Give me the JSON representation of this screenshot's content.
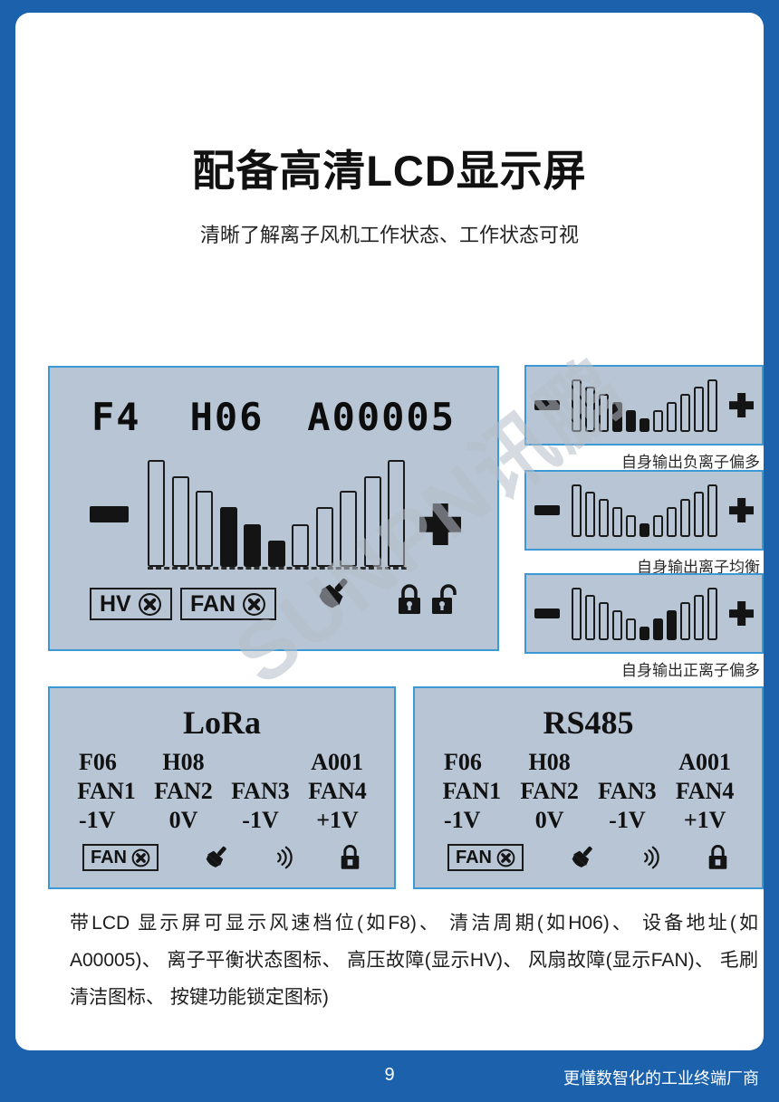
{
  "page": {
    "title": "配备高清LCD显示屏",
    "subtitle": "清晰了解离子风机工作状态、工作状态可视",
    "watermark": "SUNPN讯鹏",
    "description": "带LCD 显示屏可显示风速档位(如F8)、 清洁周期(如H06)、 设备地址(如A00005)、 离子平衡状态图标、 高压故障(显示HV)、 风扇故障(显示FAN)、 毛刷清洁图标、 按键功能锁定图标)",
    "footer": {
      "page_number": "9",
      "slogan": "更懂数智化的工业终端厂商"
    }
  },
  "main_lcd": {
    "fan_speed": "F4",
    "clean_cycle": "H06",
    "device_address": "A00005",
    "hv_label": "HV",
    "fan_label": "FAN",
    "bars": "main"
  },
  "status_panels": [
    {
      "caption": "自身输出负离子偏多",
      "bars": "negative"
    },
    {
      "caption": "自身输出离子均衡",
      "bars": "balanced"
    },
    {
      "caption": "自身输出正离子偏多",
      "bars": "positive"
    }
  ],
  "comm_panels": [
    {
      "title": "LoRa",
      "codes": [
        "F06",
        "H08",
        "A001"
      ],
      "fans": [
        "FAN1",
        "FAN2",
        "FAN3",
        "FAN4"
      ],
      "volts": [
        "-1V",
        "0V",
        "-1V",
        "+1V"
      ],
      "fan_fault_label": "FAN"
    },
    {
      "title": "RS485",
      "codes": [
        "F06",
        "H08",
        "A001"
      ],
      "fans": [
        "FAN1",
        "FAN2",
        "FAN3",
        "FAN4"
      ],
      "volts": [
        "-1V",
        "0V",
        "-1V",
        "+1V"
      ],
      "fan_fault_label": "FAN"
    }
  ],
  "lcd_bars": {
    "heights_pct": [
      100,
      85,
      71,
      56,
      40,
      25,
      40,
      56,
      71,
      85,
      100
    ],
    "panels": {
      "main": {
        "filled_indices": [
          3,
          4,
          5
        ]
      },
      "negative": {
        "filled_indices": [
          3,
          4,
          5
        ]
      },
      "balanced": {
        "filled_indices": [
          5
        ]
      },
      "positive": {
        "filled_indices": [
          5,
          6,
          7
        ]
      }
    }
  },
  "icons": {
    "minus": "minus-bar",
    "plus": "plus-cross",
    "fault": "circled-x",
    "brush": "cleaning-brush",
    "signal": "wireless-waves",
    "lock_closed": "locked-padlock",
    "lock_open": "unlocked-padlock"
  },
  "colors": {
    "frame_blue": "#1b61ac",
    "lcd_background": "#b7c5d5",
    "lcd_border": "#3d99d6",
    "ink": "#141414",
    "footer_text": "#ffffff",
    "watermark_gray": "#b6bec9"
  }
}
